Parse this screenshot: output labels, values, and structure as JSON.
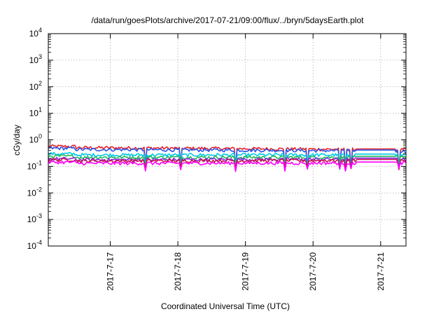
{
  "chart_data": {
    "type": "line",
    "title": "/data/run/goesPlots/archive/2017-07-21/09:00/flux/../bryn/5daysEarth.plot",
    "xlabel": "Coordinated Universal Time (UTC)",
    "ylabel": "cGy/day",
    "yscale": "log",
    "ylim": [
      0.0001,
      10000
    ],
    "y_ticks": [
      {
        "base": "10",
        "exp": "-4"
      },
      {
        "base": "10",
        "exp": "-3"
      },
      {
        "base": "10",
        "exp": "-2"
      },
      {
        "base": "10",
        "exp": "-1"
      },
      {
        "base": "10",
        "exp": "0"
      },
      {
        "base": "10",
        "exp": "1"
      },
      {
        "base": "10",
        "exp": "2"
      },
      {
        "base": "10",
        "exp": "3"
      },
      {
        "base": "10",
        "exp": "4"
      }
    ],
    "xlim": [
      "2017-07-16 02:00",
      "2017-07-21 09:00"
    ],
    "x_ticks": [
      "2017-7-17",
      "2017-7-18",
      "2017-7-19",
      "2017-7-20",
      "2017-7-21"
    ],
    "grid": true,
    "legend": "none",
    "flat_interval": [
      "2017-07-20 15:30",
      "2017-07-21 05:00"
    ],
    "series": [
      {
        "color": "#e8202a",
        "base_start": 0.52,
        "base_end": 0.42,
        "dip": 0.8
      },
      {
        "color": "#2a55e6",
        "base_start": 0.44,
        "base_end": 0.38,
        "dip": 0.75
      },
      {
        "color": "#00c8e6",
        "base_start": 0.27,
        "base_end": 0.27,
        "dip": 0.6
      },
      {
        "color": "#22b85a",
        "base_start": 0.22,
        "base_end": 0.22,
        "dip": 0.6
      },
      {
        "color": "#8a2be2",
        "base_start": 0.175,
        "base_end": 0.19,
        "dip": 0.55
      },
      {
        "color": "#c8144a",
        "base_start": 0.16,
        "base_end": 0.17,
        "dip": 0.5
      },
      {
        "color": "#ff00ff",
        "base_start": 0.13,
        "base_end": 0.135,
        "dip": 0.45
      }
    ],
    "dip_times": [
      "2017-07-17 12:30",
      "2017-07-18 01:00",
      "2017-07-18 20:30",
      "2017-07-19 14:00",
      "2017-07-19 22:00",
      "2017-07-20 09:30",
      "2017-07-20 11:30",
      "2017-07-20 13:30",
      "2017-07-21 06:30"
    ]
  }
}
